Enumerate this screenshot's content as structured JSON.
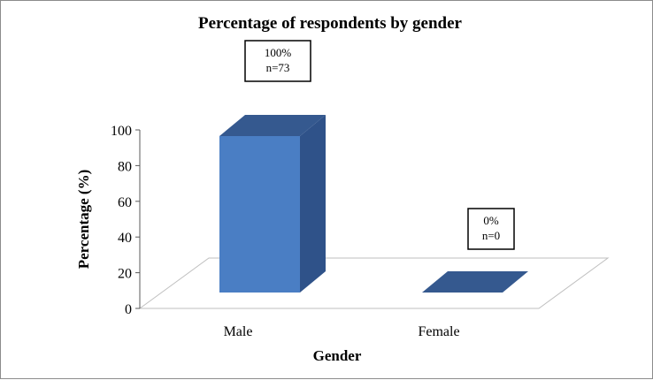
{
  "chart_data": {
    "type": "bar",
    "title": "Percentage of respondents by gender",
    "xlabel": "Gender",
    "ylabel": "Percentage (%)",
    "categories": [
      "Male",
      "Female"
    ],
    "values": [
      100,
      0
    ],
    "data_labels": [
      {
        "pct": "100%",
        "n": "n=73"
      },
      {
        "pct": "0%",
        "n": "n=0"
      }
    ],
    "y_ticks": [
      "0",
      "20",
      "40",
      "60",
      "80",
      "100"
    ],
    "ylim": [
      0,
      100
    ],
    "grid": false,
    "legend": "none",
    "style": "3d-column",
    "colors": {
      "front": "#4a7ec4",
      "side": "#2f5289",
      "top": "#35598f"
    }
  }
}
